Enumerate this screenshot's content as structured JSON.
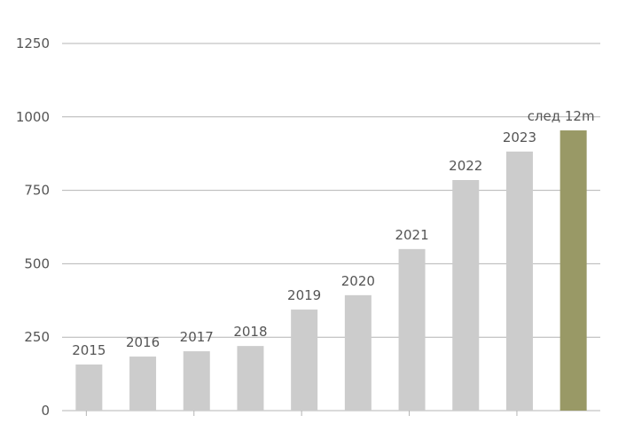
{
  "chart_data": {
    "type": "bar",
    "categories": [
      "2015",
      "2016",
      "2017",
      "2018",
      "2019",
      "2020",
      "2021",
      "2022",
      "2023",
      "след 12m"
    ],
    "values": [
      157,
      184,
      202,
      220,
      344,
      393,
      550,
      785,
      882,
      954
    ],
    "colors": [
      "#cccccc",
      "#cccccc",
      "#cccccc",
      "#cccccc",
      "#cccccc",
      "#cccccc",
      "#cccccc",
      "#cccccc",
      "#cccccc",
      "#999966"
    ],
    "ylim": [
      0,
      1250
    ],
    "yticks": [
      0,
      250,
      500,
      750,
      1000,
      1250
    ],
    "grid": true
  }
}
